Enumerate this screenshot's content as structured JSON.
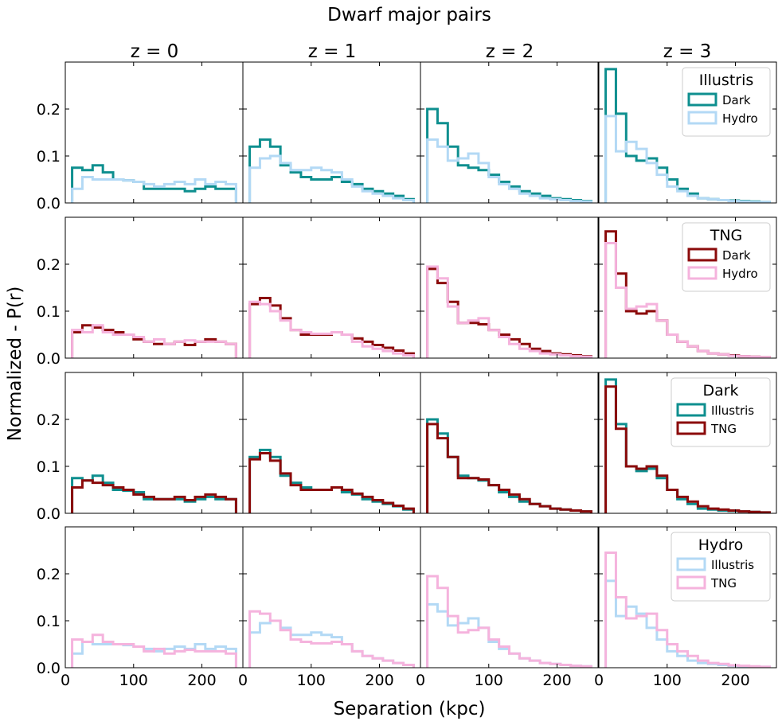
{
  "chart_data": {
    "type": "histogram-grid",
    "title": "Dwarf major pairs",
    "xlabel": "Separation (kpc)",
    "ylabel": "Normalized - P(r)",
    "columns": [
      "z = 0",
      "z = 1",
      "z = 2",
      "z = 3"
    ],
    "xlim": [
      0,
      260
    ],
    "ylim": [
      0,
      0.3
    ],
    "xticks": [
      0,
      100,
      200
    ],
    "xtick_labels": [
      "0",
      "100",
      "200"
    ],
    "yticks": [
      0,
      0.1,
      0.2
    ],
    "ytick_labels": [
      "0.0",
      "0.1",
      "0.2"
    ],
    "bin_edges": [
      10,
      25,
      40,
      55,
      70,
      85,
      100,
      115,
      130,
      145,
      160,
      175,
      190,
      205,
      220,
      235,
      250
    ],
    "colors": {
      "illustris_dark": "#0e8f8f",
      "illustris_hydro": "#b3d9f5",
      "tng_dark": "#8b0a0a",
      "tng_hydro": "#f5b3dd"
    },
    "series": {
      "illustris_dark": [
        [
          0.075,
          0.07,
          0.08,
          0.065,
          0.05,
          0.048,
          0.045,
          0.03,
          0.03,
          0.03,
          0.03,
          0.025,
          0.03,
          0.035,
          0.03,
          0.03
        ],
        [
          0.12,
          0.135,
          0.12,
          0.08,
          0.065,
          0.055,
          0.05,
          0.05,
          0.055,
          0.045,
          0.04,
          0.03,
          0.025,
          0.02,
          0.015,
          0.008
        ],
        [
          0.2,
          0.17,
          0.12,
          0.08,
          0.075,
          0.07,
          0.06,
          0.045,
          0.035,
          0.025,
          0.02,
          0.015,
          0.01,
          0.008,
          0.006,
          0.004
        ],
        [
          0.285,
          0.19,
          0.1,
          0.09,
          0.095,
          0.075,
          0.05,
          0.03,
          0.02,
          0.01,
          0.008,
          0.006,
          0.005,
          0.004,
          0.003,
          0.002
        ]
      ],
      "illustris_hydro": [
        [
          0.03,
          0.055,
          0.05,
          0.05,
          0.05,
          0.048,
          0.045,
          0.04,
          0.035,
          0.04,
          0.045,
          0.04,
          0.05,
          0.04,
          0.045,
          0.04
        ],
        [
          0.075,
          0.095,
          0.1,
          0.085,
          0.07,
          0.07,
          0.075,
          0.07,
          0.065,
          0.05,
          0.035,
          0.025,
          0.02,
          0.015,
          0.01,
          0.006
        ],
        [
          0.135,
          0.12,
          0.09,
          0.095,
          0.105,
          0.085,
          0.055,
          0.04,
          0.03,
          0.02,
          0.015,
          0.01,
          0.008,
          0.006,
          0.004,
          0.003
        ],
        [
          0.185,
          0.11,
          0.13,
          0.115,
          0.085,
          0.06,
          0.035,
          0.025,
          0.015,
          0.01,
          0.008,
          0.006,
          0.004,
          0.003,
          0.002,
          0.002
        ]
      ],
      "tng_dark": [
        [
          0.055,
          0.07,
          0.065,
          0.06,
          0.055,
          0.05,
          0.04,
          0.035,
          0.03,
          0.03,
          0.035,
          0.028,
          0.035,
          0.04,
          0.035,
          0.03
        ],
        [
          0.115,
          0.128,
          0.112,
          0.085,
          0.06,
          0.05,
          0.05,
          0.05,
          0.055,
          0.05,
          0.042,
          0.035,
          0.028,
          0.022,
          0.016,
          0.01
        ],
        [
          0.19,
          0.16,
          0.12,
          0.075,
          0.075,
          0.072,
          0.06,
          0.05,
          0.04,
          0.03,
          0.02,
          0.015,
          0.01,
          0.008,
          0.006,
          0.004
        ],
        [
          0.27,
          0.18,
          0.1,
          0.095,
          0.1,
          0.08,
          0.05,
          0.035,
          0.025,
          0.015,
          0.01,
          0.008,
          0.006,
          0.004,
          0.003,
          0.002
        ]
      ],
      "tng_hydro": [
        [
          0.06,
          0.055,
          0.07,
          0.055,
          0.05,
          0.05,
          0.045,
          0.035,
          0.04,
          0.03,
          0.035,
          0.038,
          0.035,
          0.035,
          0.035,
          0.03
        ],
        [
          0.12,
          0.115,
          0.1,
          0.08,
          0.06,
          0.055,
          0.052,
          0.052,
          0.055,
          0.05,
          0.035,
          0.025,
          0.02,
          0.015,
          0.01,
          0.006
        ],
        [
          0.195,
          0.17,
          0.11,
          0.075,
          0.08,
          0.085,
          0.06,
          0.045,
          0.03,
          0.02,
          0.015,
          0.01,
          0.008,
          0.006,
          0.004,
          0.003
        ],
        [
          0.245,
          0.15,
          0.105,
          0.11,
          0.115,
          0.08,
          0.05,
          0.035,
          0.025,
          0.015,
          0.01,
          0.008,
          0.005,
          0.004,
          0.003,
          0.002
        ]
      ]
    },
    "rows": [
      {
        "series": [
          "illustris_dark",
          "illustris_hydro"
        ],
        "legend": {
          "title": "Illustris",
          "entries": [
            "Dark",
            "Hydro"
          ]
        }
      },
      {
        "series": [
          "tng_dark",
          "tng_hydro"
        ],
        "legend": {
          "title": "TNG",
          "entries": [
            "Dark",
            "Hydro"
          ]
        }
      },
      {
        "series": [
          "illustris_dark",
          "tng_dark"
        ],
        "legend": {
          "title": "Dark",
          "entries": [
            "Illustris",
            "TNG"
          ]
        }
      },
      {
        "series": [
          "illustris_hydro",
          "tng_hydro"
        ],
        "legend": {
          "title": "Hydro",
          "entries": [
            "Illustris",
            "TNG"
          ]
        }
      }
    ],
    "legend_placement": "top-right"
  }
}
